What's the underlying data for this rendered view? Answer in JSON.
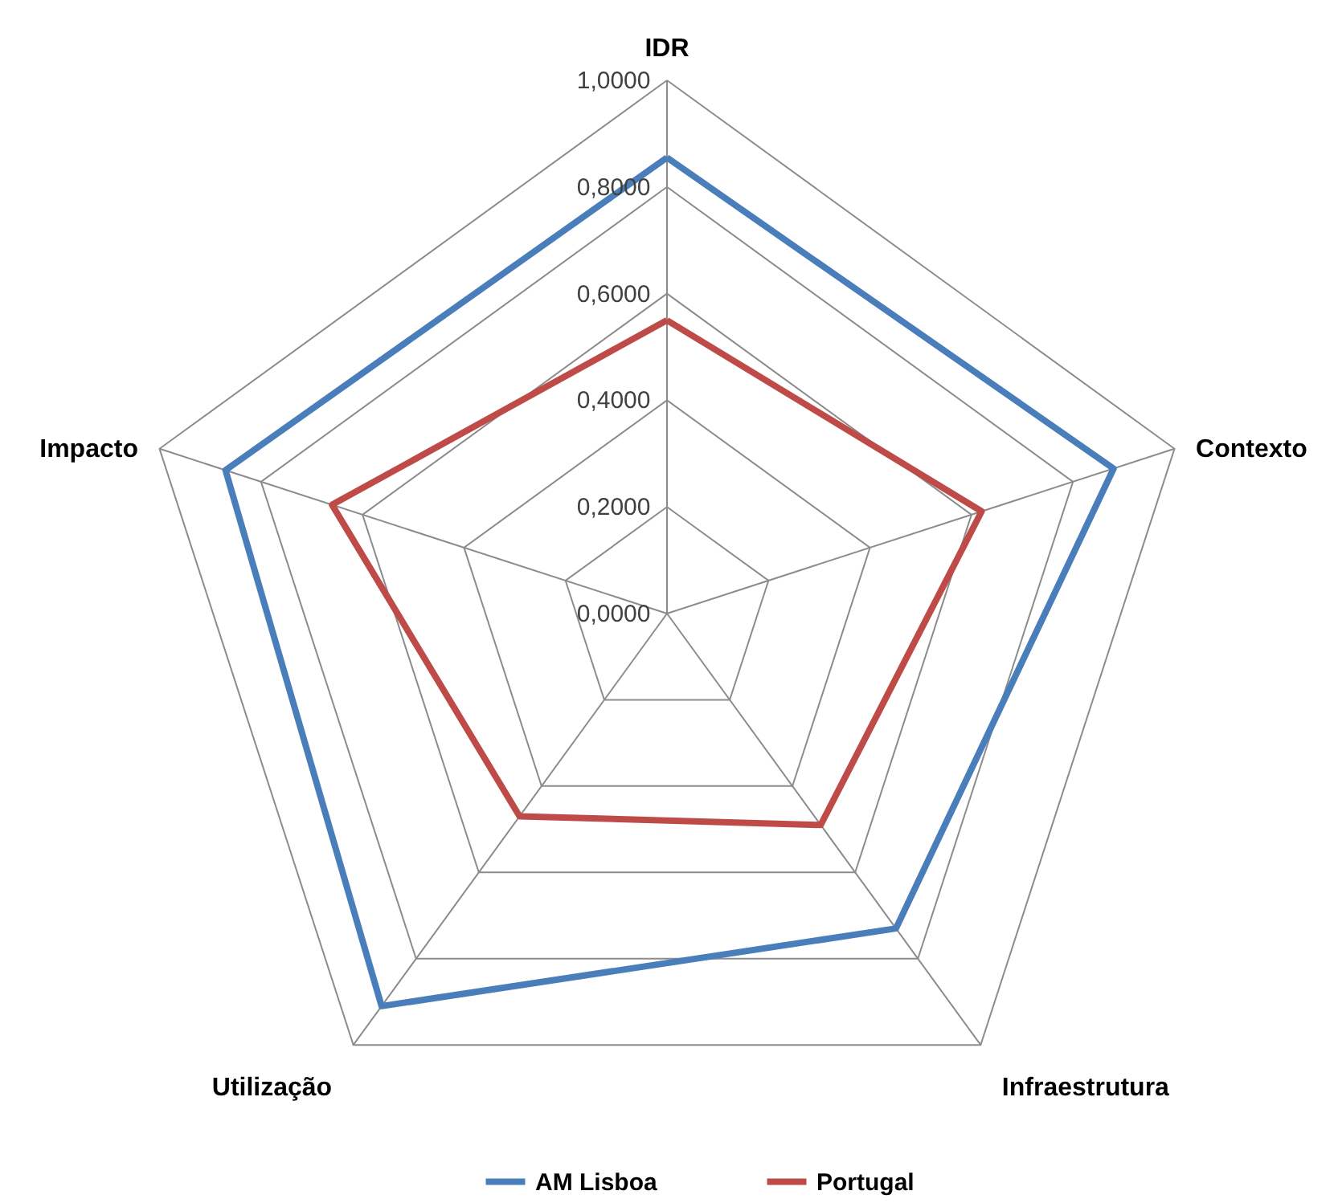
{
  "chart_data": {
    "type": "radar",
    "categories": [
      "IDR",
      "Contexto",
      "Infraestrutura",
      "Utilização",
      "Impacto"
    ],
    "ylim": [
      0,
      1
    ],
    "yticks": [
      {
        "value": 0,
        "label": "0,0000"
      },
      {
        "value": 0.2,
        "label": "0,2000"
      },
      {
        "value": 0.4,
        "label": "0,4000"
      },
      {
        "value": 0.6,
        "label": "0,6000"
      },
      {
        "value": 0.8,
        "label": "0,8000"
      },
      {
        "value": 1,
        "label": "1,0000"
      }
    ],
    "grid": true,
    "legend": "bottom",
    "marker": "none",
    "line_style": "solid",
    "series": [
      {
        "name": "AM Lisboa",
        "color": "#4a7ebb",
        "values": [
          0.855,
          0.88,
          0.73,
          0.91,
          0.87
        ]
      },
      {
        "name": "Portugal",
        "color": "#be4b48",
        "values": [
          0.55,
          0.62,
          0.49,
          0.47,
          0.66
        ]
      }
    ]
  }
}
